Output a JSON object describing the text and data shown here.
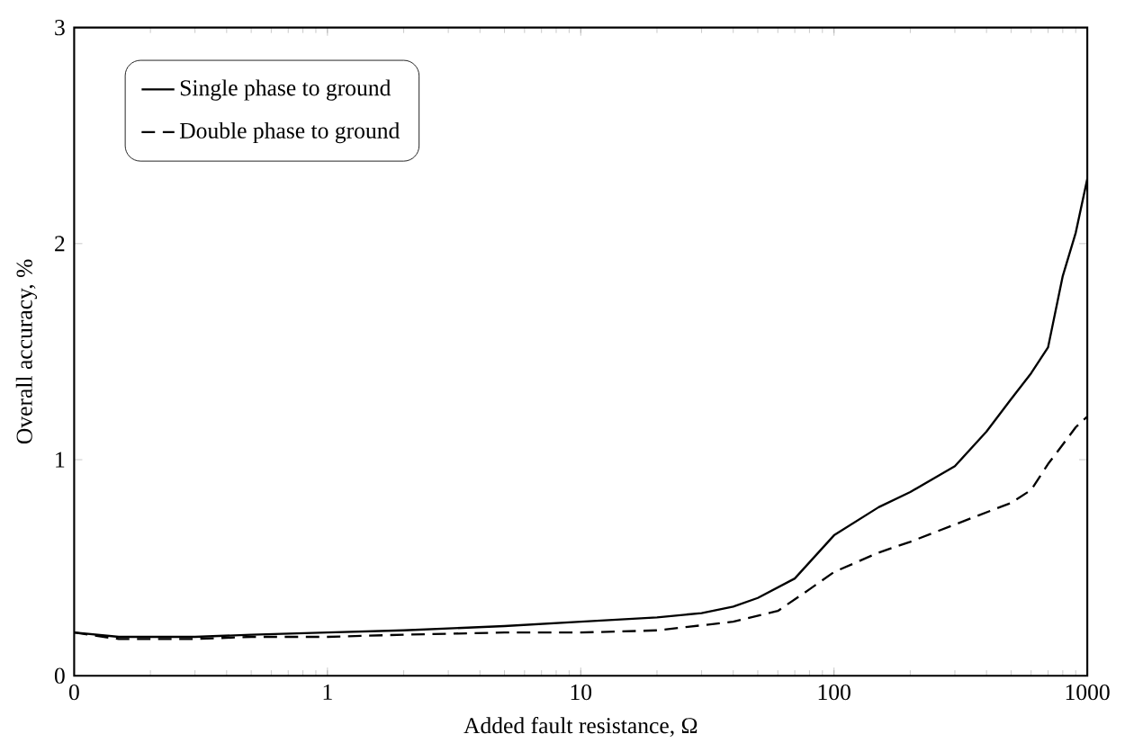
{
  "chart_data": {
    "type": "line",
    "xlabel": "Added fault resistance, Ω",
    "ylabel": "Overall accuracy,  %",
    "log": "x",
    "xlim": [
      0.1,
      1000
    ],
    "xticks": [
      {
        "value": 0.1,
        "label": "0"
      },
      1,
      10,
      100,
      1000
    ],
    "ylim": [
      0,
      3
    ],
    "yticks": [
      0,
      1,
      2,
      3
    ],
    "grid": false,
    "legend": "top left",
    "marker": "none",
    "series": [
      {
        "name": "Single phase to ground",
        "color": "#000000",
        "line_style": "solid",
        "x": [
          0.1,
          0.15,
          0.2,
          0.3,
          0.5,
          1,
          2,
          5,
          10,
          20,
          30,
          40,
          50,
          70,
          100,
          150,
          200,
          300,
          400,
          500,
          600,
          700,
          800,
          900,
          1000
        ],
        "values": [
          0.2,
          0.18,
          0.18,
          0.18,
          0.19,
          0.2,
          0.21,
          0.23,
          0.25,
          0.27,
          0.29,
          0.32,
          0.36,
          0.45,
          0.65,
          0.78,
          0.85,
          0.97,
          1.13,
          1.28,
          1.4,
          1.52,
          1.85,
          2.05,
          2.3
        ]
      },
      {
        "name": "Double phase to ground",
        "color": "#000000",
        "line_style": "dashed",
        "x": [
          0.1,
          0.15,
          0.2,
          0.3,
          0.5,
          1,
          2,
          5,
          10,
          20,
          40,
          60,
          80,
          100,
          150,
          200,
          300,
          500,
          600,
          700,
          800,
          900,
          1000
        ],
        "values": [
          0.2,
          0.17,
          0.17,
          0.17,
          0.18,
          0.18,
          0.19,
          0.2,
          0.2,
          0.21,
          0.25,
          0.3,
          0.4,
          0.48,
          0.57,
          0.62,
          0.7,
          0.8,
          0.86,
          0.98,
          1.07,
          1.15,
          1.2
        ]
      }
    ]
  }
}
